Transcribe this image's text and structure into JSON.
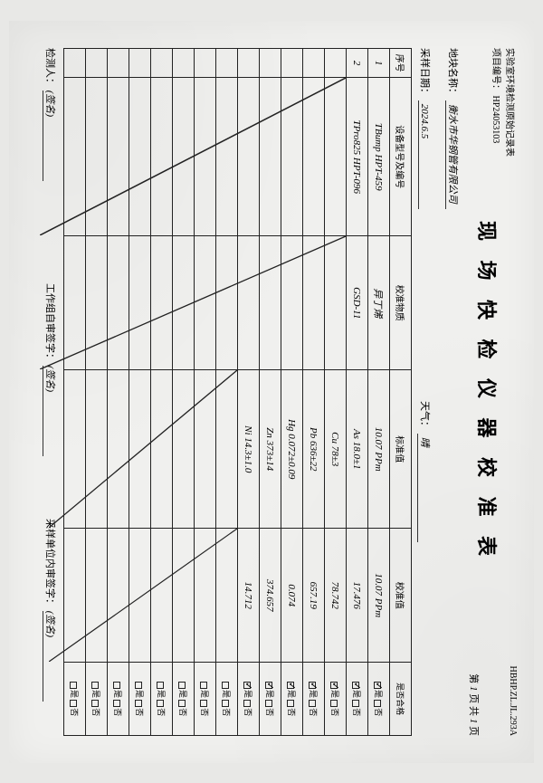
{
  "header": {
    "org": "实验室环境检测原始记录表",
    "projectNumLabel": "项目编号：",
    "projectNum": "HP24053103",
    "formCode": "HBHP.ZL.JL.293A"
  },
  "title": "现 场 快 检 仪 器 校 准 表",
  "pageLabel": {
    "prefix": "第",
    "cur": "1",
    "mid": "页  共",
    "total": "1",
    "suffix": "页"
  },
  "meta": {
    "plotLabel": "地块名称：",
    "plot": "衡水市华钢管有限公司",
    "dateLabel": "采样日期：",
    "date": "2024.6.5",
    "weatherLabel": "天气：",
    "weather": "晴"
  },
  "columns": {
    "idx": "序号",
    "device": "设备型号及编号",
    "material": "校准物质",
    "std": "标准值",
    "cal": "校准值",
    "ok": "是否合格"
  },
  "okOptions": {
    "yes": "是",
    "no": "否"
  },
  "rows": [
    {
      "idx": "1",
      "device": "TBump  HPT-459",
      "material": "异丁烯",
      "std": "10.07 PPm",
      "cal": "10.07 PPm",
      "yes": true
    },
    {
      "idx": "2",
      "device": "TPro825  HPT-096",
      "material": "GSD-11",
      "std": "As 18.0±1",
      "cal": "17.476",
      "yes": true
    },
    {
      "idx": "",
      "device": "",
      "material": "",
      "std": "Cu 78±3",
      "cal": "78.742",
      "yes": true
    },
    {
      "idx": "",
      "device": "",
      "material": "",
      "std": "Pb 636±22",
      "cal": "657.19",
      "yes": true
    },
    {
      "idx": "",
      "device": "",
      "material": "",
      "std": "Hg 0.072±0.09",
      "cal": "0.074",
      "yes": true
    },
    {
      "idx": "",
      "device": "",
      "material": "",
      "std": "Zn 373±14",
      "cal": "374.657",
      "yes": true
    },
    {
      "idx": "",
      "device": "",
      "material": "",
      "std": "Ni 14.3±1.0",
      "cal": "14.712",
      "yes": true
    },
    {
      "idx": "",
      "device": "",
      "material": "",
      "std": "",
      "cal": "",
      "yes": null
    },
    {
      "idx": "",
      "device": "",
      "material": "",
      "std": "",
      "cal": "",
      "yes": null
    },
    {
      "idx": "",
      "device": "",
      "material": "",
      "std": "",
      "cal": "",
      "yes": null
    },
    {
      "idx": "",
      "device": "",
      "material": "",
      "std": "",
      "cal": "",
      "yes": null
    },
    {
      "idx": "",
      "device": "",
      "material": "",
      "std": "",
      "cal": "",
      "yes": null
    },
    {
      "idx": "",
      "device": "",
      "material": "",
      "std": "",
      "cal": "",
      "yes": null
    },
    {
      "idx": "",
      "device": "",
      "material": "",
      "std": "",
      "cal": "",
      "yes": null
    },
    {
      "idx": "",
      "device": "",
      "material": "",
      "std": "",
      "cal": "",
      "yes": null
    }
  ],
  "diagonals": {
    "deviceFrom": 2,
    "deviceTo": 14,
    "materialFrom": 2,
    "materialTo": 14,
    "stdFrom": 7,
    "stdTo": 14,
    "calFrom": 7,
    "calTo": 14
  },
  "footer": {
    "testerLabel": "检测人：",
    "tester": "(签名)",
    "groupLabel": "工作组自审签字：",
    "group": "(签名)",
    "unitLabel": "采样单位内审签字：",
    "unit": "(签名)"
  },
  "style": {
    "bg": "#f0f0ee",
    "border": "#222222",
    "hwColor": "#111111",
    "titleSize": 22,
    "bodySize": 10
  }
}
